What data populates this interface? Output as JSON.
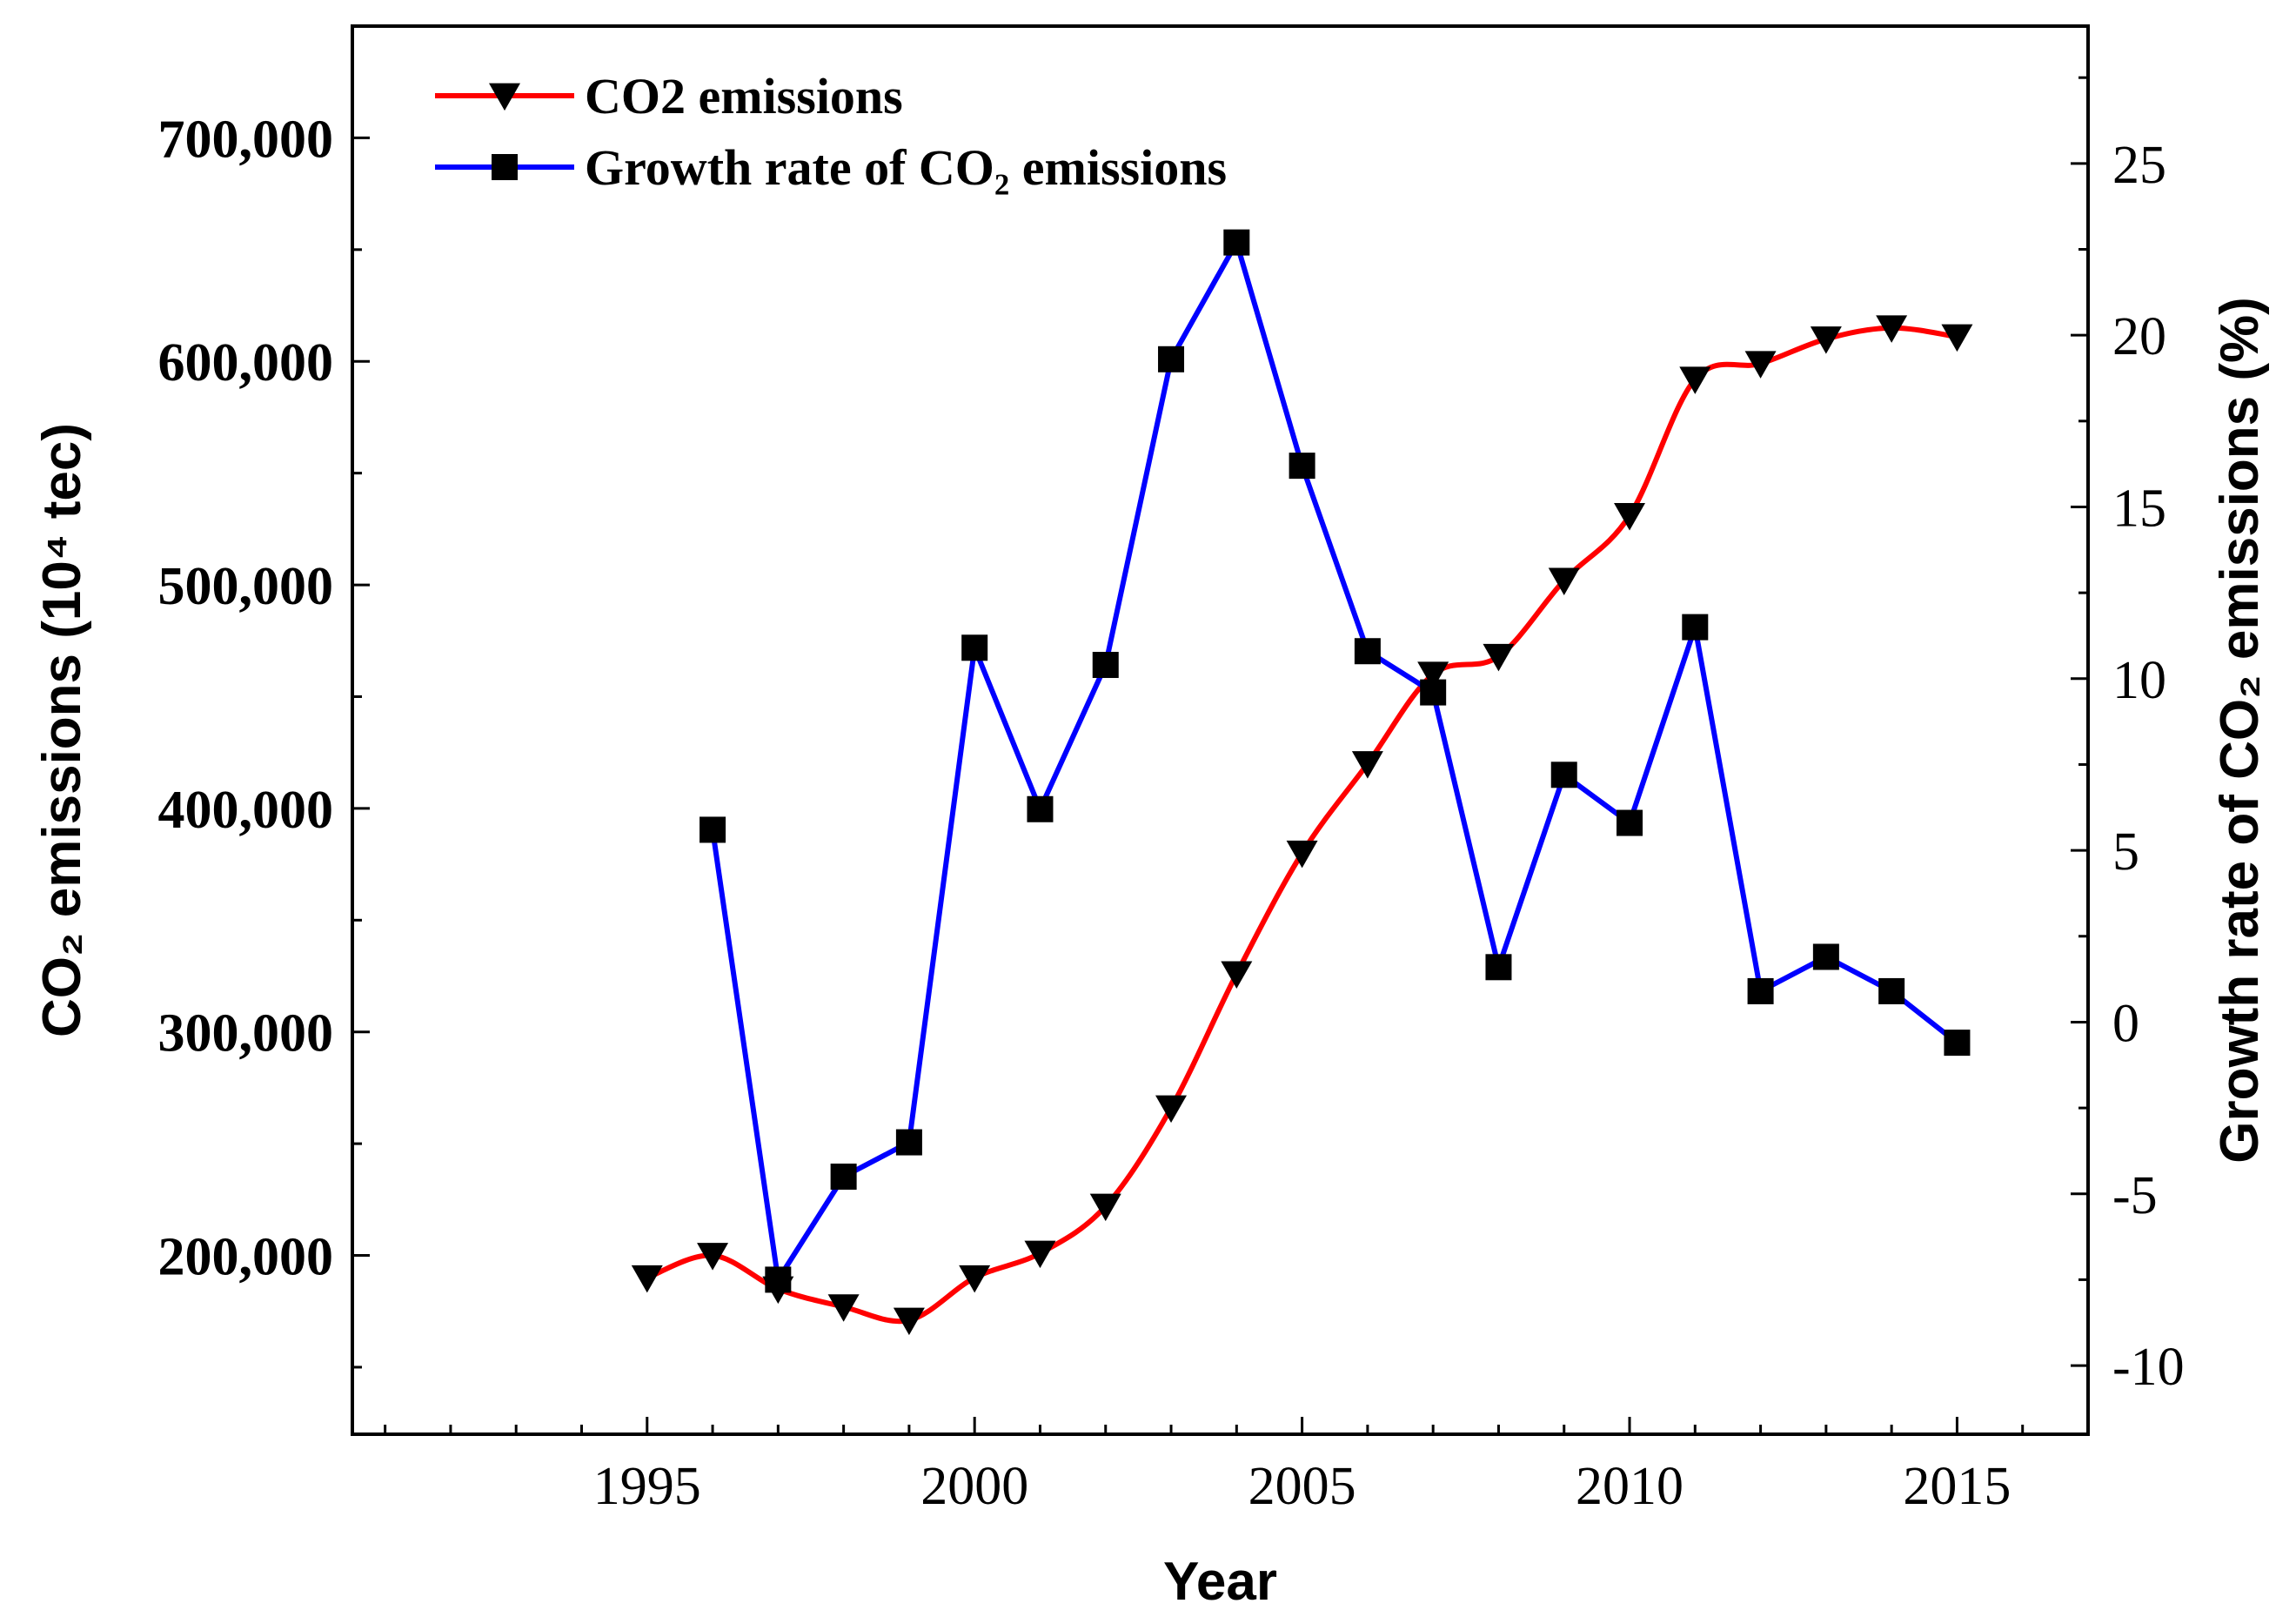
{
  "chart_data": {
    "type": "line",
    "x_axis": {
      "label": "Year",
      "range": [
        1990.5,
        2017
      ],
      "ticks": [
        1995,
        2000,
        2005,
        2010,
        2015
      ],
      "tick_labels": [
        "1995",
        "2000",
        "2005",
        "2010",
        "2015"
      ],
      "minor_step": 1
    },
    "y_left": {
      "label": "CO₂ emissions (10⁴ tec)",
      "range": [
        120000,
        750000
      ],
      "ticks": [
        200000,
        300000,
        400000,
        500000,
        600000,
        700000
      ],
      "tick_labels": [
        "200,000",
        "300,000",
        "400,000",
        "500,000",
        "600,000",
        "700,000"
      ],
      "minor_step": 50000
    },
    "y_right": {
      "label": "Growth rate of CO₂ emissions (%)",
      "range": [
        -12,
        29
      ],
      "ticks": [
        -10,
        -5,
        0,
        5,
        10,
        15,
        20,
        25
      ],
      "tick_labels": [
        "-10",
        "-5",
        "0",
        "5",
        "10",
        "15",
        "20",
        "25"
      ],
      "minor_step": 2.5
    },
    "series": [
      {
        "name": "CO2 emissions",
        "legend_label": "CO2 emissions",
        "axis": "left",
        "color": "#ff0000",
        "marker": "triangle-down",
        "marker_color": "#000000",
        "x": [
          1995,
          1996,
          1997,
          1998,
          1999,
          2000,
          2001,
          2002,
          2003,
          2004,
          2005,
          2006,
          2007,
          2008,
          2009,
          2010,
          2011,
          2012,
          2013,
          2014,
          2015
        ],
        "values": [
          190000,
          200000,
          185000,
          177000,
          171000,
          190000,
          201000,
          222000,
          266000,
          326000,
          380000,
          420000,
          460000,
          468000,
          502000,
          531000,
          592000,
          599000,
          610000,
          615000,
          611000
        ]
      },
      {
        "name": "Growth rate of CO2 emissions",
        "legend_label": "Growth rate of CO₂ emissions",
        "axis": "right",
        "color": "#0000ff",
        "marker": "square",
        "marker_color": "#000000",
        "x": [
          1996,
          1997,
          1998,
          1999,
          2000,
          2001,
          2002,
          2003,
          2004,
          2005,
          2006,
          2007,
          2008,
          2009,
          2010,
          2011,
          2012,
          2013,
          2014,
          2015
        ],
        "values": [
          5.6,
          -7.5,
          -4.5,
          -3.5,
          10.9,
          6.2,
          10.4,
          19.3,
          22.7,
          16.2,
          10.8,
          9.6,
          1.6,
          7.2,
          5.8,
          11.5,
          0.9,
          1.9,
          0.9,
          -0.6
        ]
      }
    ],
    "legend_position": "top-left"
  }
}
